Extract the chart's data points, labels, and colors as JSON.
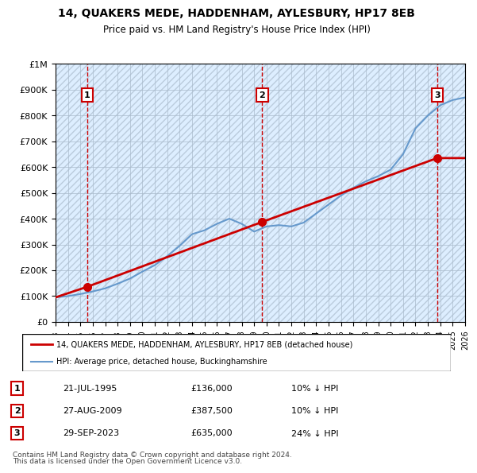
{
  "title": "14, QUAKERS MEDE, HADDENHAM, AYLESBURY, HP17 8EB",
  "subtitle": "Price paid vs. HM Land Registry's House Price Index (HPI)",
  "legend_entry1": "14, QUAKERS MEDE, HADDENHAM, AYLESBURY, HP17 8EB (detached house)",
  "legend_entry2": "HPI: Average price, detached house, Buckinghamshire",
  "footnote1": "Contains HM Land Registry data © Crown copyright and database right 2024.",
  "footnote2": "This data is licensed under the Open Government Licence v3.0.",
  "sales": [
    {
      "num": 1,
      "date": "21-JUL-1995",
      "price": 136000,
      "pct": "10%",
      "dir": "↓",
      "year": 1995.55
    },
    {
      "num": 2,
      "date": "27-AUG-2009",
      "price": 387500,
      "pct": "10%",
      "dir": "↓",
      "year": 2009.65
    },
    {
      "num": 3,
      "date": "29-SEP-2023",
      "price": 635000,
      "pct": "24%",
      "dir": "↓",
      "year": 2023.75
    }
  ],
  "hpi_years": [
    1993,
    1994,
    1995,
    1996,
    1997,
    1998,
    1999,
    2000,
    2001,
    2002,
    2003,
    2004,
    2005,
    2006,
    2007,
    2008,
    2009,
    2010,
    2011,
    2012,
    2013,
    2014,
    2015,
    2016,
    2017,
    2018,
    2019,
    2020,
    2021,
    2022,
    2023,
    2024,
    2025,
    2026
  ],
  "hpi_values": [
    95000,
    100000,
    108000,
    118000,
    130000,
    148000,
    168000,
    195000,
    220000,
    255000,
    295000,
    340000,
    355000,
    380000,
    400000,
    380000,
    350000,
    370000,
    375000,
    370000,
    385000,
    420000,
    455000,
    490000,
    520000,
    545000,
    565000,
    590000,
    650000,
    750000,
    800000,
    840000,
    860000,
    870000
  ],
  "price_years": [
    1993,
    1995.55,
    2009.65,
    2023.75,
    2026
  ],
  "price_values": [
    95000,
    136000,
    387500,
    635000,
    635000
  ],
  "xlim": [
    1993,
    2026
  ],
  "ylim": [
    0,
    1000000
  ],
  "xticks": [
    1993,
    1994,
    1995,
    1996,
    1997,
    1998,
    1999,
    2000,
    2001,
    2002,
    2003,
    2004,
    2005,
    2006,
    2007,
    2008,
    2009,
    2010,
    2011,
    2012,
    2013,
    2014,
    2015,
    2016,
    2017,
    2018,
    2019,
    2020,
    2021,
    2022,
    2023,
    2024,
    2025,
    2026
  ],
  "yticks": [
    0,
    100000,
    200000,
    300000,
    400000,
    500000,
    600000,
    700000,
    800000,
    900000,
    1000000
  ],
  "line_color_red": "#cc0000",
  "line_color_blue": "#6699cc",
  "marker_color": "#cc0000",
  "dashed_color": "#cc0000",
  "bg_color": "#ddeeff",
  "hatch_color": "#ccddee",
  "grid_color": "#aabbcc"
}
